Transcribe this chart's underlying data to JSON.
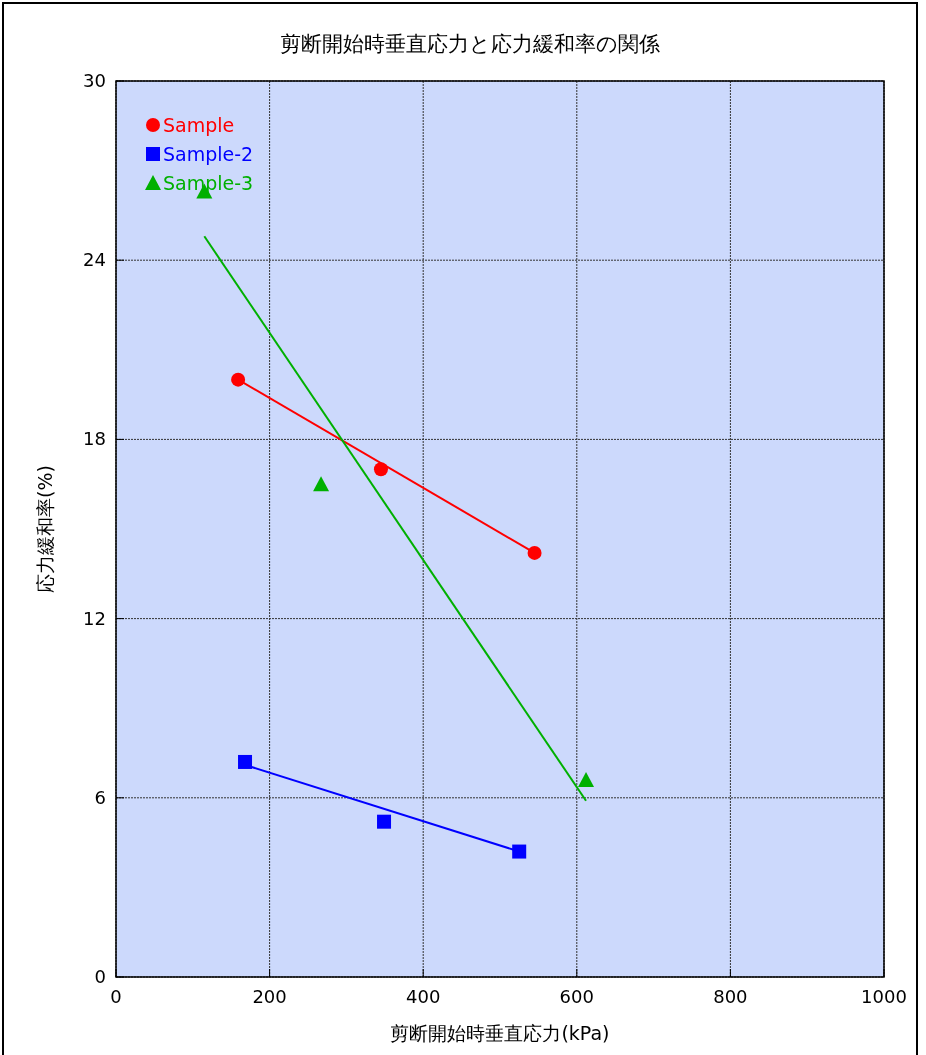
{
  "chart_data": {
    "type": "scatter",
    "title": "剪断開始時垂直応力と応力緩和率の関係",
    "xlabel": "剪断開始時垂直応力(kPa)",
    "ylabel": "応力緩和率(%)",
    "xlim": [
      0,
      1000
    ],
    "xticks": [
      0,
      200,
      400,
      600,
      800,
      1000
    ],
    "ylim": [
      0,
      30
    ],
    "yticks": [
      0,
      6,
      12,
      18,
      24,
      30
    ],
    "grid": true,
    "legend": "top left",
    "series": [
      {
        "name": "Sample",
        "marker": "circle",
        "color": "#ff0000",
        "x": [
          159,
          345,
          545
        ],
        "values": [
          20.0,
          17.0,
          14.2
        ]
      },
      {
        "name": "Sample-2",
        "marker": "square",
        "color": "#0000ff",
        "x": [
          168,
          349,
          525
        ],
        "values": [
          7.2,
          5.2,
          4.2
        ]
      },
      {
        "name": "Sample-3",
        "marker": "triangle",
        "color": "#00b000",
        "x": [
          115,
          267,
          612
        ],
        "values": [
          26.3,
          16.5,
          6.6
        ]
      },
      {
        "type": "line",
        "color": "#ff0000",
        "x": [
          159,
          545
        ],
        "values": [
          20.0,
          14.2
        ]
      },
      {
        "type": "line",
        "color": "#0000ff",
        "x": [
          168,
          525
        ],
        "values": [
          7.1,
          4.2
        ]
      },
      {
        "type": "line",
        "color": "#00b000",
        "x": [
          115,
          612
        ],
        "values": [
          24.8,
          5.9
        ]
      }
    ]
  }
}
